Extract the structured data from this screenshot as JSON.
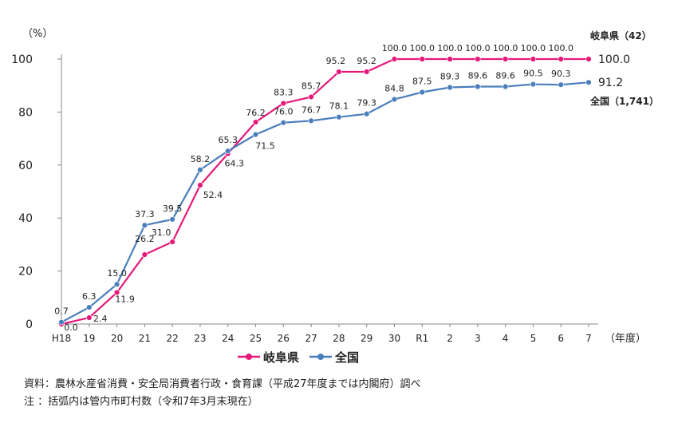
{
  "chart_data": {
    "type": "line",
    "y_unit": "（%）",
    "x_unit": "（年度）",
    "categories": [
      "H18",
      "19",
      "20",
      "21",
      "22",
      "23",
      "24",
      "25",
      "26",
      "27",
      "28",
      "29",
      "30",
      "R1",
      "2",
      "3",
      "4",
      "5",
      "6",
      "7"
    ],
    "ylim": [
      0,
      100
    ],
    "yticks": [
      0,
      20,
      40,
      60,
      80,
      100
    ],
    "grid": false,
    "legend_position": "bottom",
    "series": [
      {
        "name": "岐阜県",
        "color": "#E5197A",
        "values": [
          0.0,
          2.4,
          11.9,
          26.2,
          31.0,
          52.4,
          64.3,
          76.2,
          83.3,
          85.7,
          95.2,
          95.2,
          100.0,
          100.0,
          100.0,
          100.0,
          100.0,
          100.0,
          100.0,
          100.0
        ],
        "labels": [
          "0.0",
          "2.4",
          "11.9",
          "26.2",
          "31.0",
          "52.4",
          "64.3",
          "76.2",
          "83.3",
          "85.7",
          "95.2",
          "95.2",
          "100.0",
          "100.0",
          "100.0",
          "100.0",
          "100.0",
          "100.0",
          "100.0",
          "100.0"
        ],
        "end_label": "岐阜県（42）"
      },
      {
        "name": "全国",
        "color": "#4A7EBB",
        "values": [
          0.7,
          6.3,
          15.0,
          37.3,
          39.5,
          58.2,
          65.3,
          71.5,
          76.0,
          76.7,
          78.1,
          79.3,
          84.8,
          87.5,
          89.3,
          89.6,
          89.6,
          90.5,
          90.3,
          91.2
        ],
        "labels": [
          "0.7",
          "6.3",
          "15.0",
          "37.3",
          "39.5",
          "58.2",
          "65.3",
          "71.5",
          "76.0",
          "76.7",
          "78.1",
          "79.3",
          "84.8",
          "87.5",
          "89.3",
          "89.6",
          "89.6",
          "90.5",
          "90.3",
          "91.2"
        ],
        "end_label": "全国（1,741）"
      }
    ]
  },
  "notes": {
    "source": "資料：農林水産省消費・安全局消費者行政・食育課（平成27年度までは内閣府）調べ",
    "note": "注 ：括弧内は管内市町村数（令和7年3月末現在）"
  }
}
